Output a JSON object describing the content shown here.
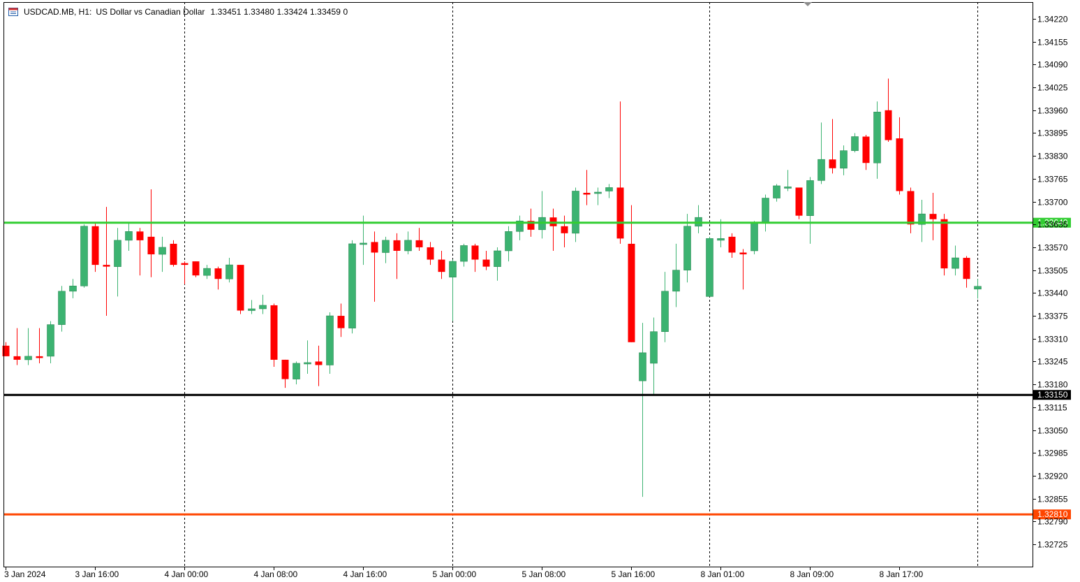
{
  "header": {
    "symbol": "USDCAD.MB, H1:",
    "description": "US Dollar vs Canadian Dollar",
    "ohlc": "1.33451 1.33480 1.33424 1.33459  0"
  },
  "colors": {
    "bull": "#3cb371",
    "bear": "#ff0000",
    "grid": "#000000",
    "axis": "#000000",
    "hline_green": "#32cd32",
    "hline_black": "#000000",
    "hline_orange": "#ff4500",
    "background": "#ffffff"
  },
  "chart_data": {
    "type": "candlestick",
    "y_ticks": [
      "1.34220",
      "1.34155",
      "1.34090",
      "1.34025",
      "1.33960",
      "1.33895",
      "1.33830",
      "1.33765",
      "1.33700",
      "1.33635",
      "1.33570",
      "1.33505",
      "1.33440",
      "1.33375",
      "1.33310",
      "1.33245",
      "1.33180",
      "1.33115",
      "1.33050",
      "1.32985",
      "1.32920",
      "1.32855",
      "1.32790",
      "1.32725"
    ],
    "y_tick_values": [
      1.3422,
      1.34155,
      1.3409,
      1.34025,
      1.3396,
      1.33895,
      1.3383,
      1.33765,
      1.337,
      1.33635,
      1.3357,
      1.33505,
      1.3344,
      1.33375,
      1.3331,
      1.33245,
      1.3318,
      1.33115,
      1.3305,
      1.32985,
      1.3292,
      1.32855,
      1.3279,
      1.32725
    ],
    "x_labels": [
      {
        "label": "3 Jan 2024",
        "index": 0
      },
      {
        "label": "3 Jan 16:00",
        "index": 8
      },
      {
        "label": "4 Jan 00:00",
        "index": 16
      },
      {
        "label": "4 Jan 08:00",
        "index": 24
      },
      {
        "label": "4 Jan 16:00",
        "index": 32
      },
      {
        "label": "5 Jan 00:00",
        "index": 40
      },
      {
        "label": "5 Jan 08:00",
        "index": 48
      },
      {
        "label": "5 Jan 16:00",
        "index": 56
      },
      {
        "label": "8 Jan 01:00",
        "index": 64
      },
      {
        "label": "8 Jan 09:00",
        "index": 72
      },
      {
        "label": "8 Jan 17:00",
        "index": 80
      }
    ],
    "separators": [
      16,
      40,
      63,
      87
    ],
    "hlines": [
      {
        "value": 1.3364,
        "label": "1.33640",
        "color": "#32cd32"
      },
      {
        "value": 1.3315,
        "label": "1.33150",
        "color": "#000000"
      },
      {
        "value": 1.3281,
        "label": "1.32810",
        "color": "#ff4500"
      }
    ],
    "candles": [
      [
        1.3329,
        1.333,
        1.3326,
        1.3326
      ],
      [
        1.3326,
        1.3334,
        1.33235,
        1.3325
      ],
      [
        1.3325,
        1.3334,
        1.33235,
        1.3326
      ],
      [
        1.3326,
        1.3334,
        1.3324,
        1.33255
      ],
      [
        1.3326,
        1.3336,
        1.3324,
        1.3335
      ],
      [
        1.3335,
        1.3346,
        1.3333,
        1.33445
      ],
      [
        1.33445,
        1.3348,
        1.33425,
        1.3346
      ],
      [
        1.3346,
        1.33635,
        1.33455,
        1.3363
      ],
      [
        1.3363,
        1.3364,
        1.335,
        1.3352
      ],
      [
        1.3352,
        1.33685,
        1.33375,
        1.33515
      ],
      [
        1.33515,
        1.33625,
        1.3343,
        1.3359
      ],
      [
        1.3359,
        1.3364,
        1.3356,
        1.33615
      ],
      [
        1.33615,
        1.33625,
        1.3349,
        1.3359
      ],
      [
        1.336,
        1.33735,
        1.33485,
        1.3355
      ],
      [
        1.3355,
        1.336,
        1.335,
        1.3357
      ],
      [
        1.3358,
        1.3359,
        1.33515,
        1.3352
      ],
      [
        1.33525,
        1.3353,
        1.33465,
        1.3352
      ],
      [
        1.3353,
        1.3353,
        1.33485,
        1.3349
      ],
      [
        1.3349,
        1.3352,
        1.3348,
        1.3351
      ],
      [
        1.3351,
        1.33515,
        1.3345,
        1.3348
      ],
      [
        1.3348,
        1.3354,
        1.3347,
        1.3352
      ],
      [
        1.3352,
        1.3352,
        1.3338,
        1.3339
      ],
      [
        1.3339,
        1.3342,
        1.3338,
        1.33395
      ],
      [
        1.33395,
        1.33435,
        1.3338,
        1.33405
      ],
      [
        1.33405,
        1.3341,
        1.3323,
        1.3325
      ],
      [
        1.3325,
        1.3325,
        1.3317,
        1.33195
      ],
      [
        1.33195,
        1.33245,
        1.3318,
        1.3324
      ],
      [
        1.3324,
        1.33305,
        1.3321,
        1.3324
      ],
      [
        1.33245,
        1.3329,
        1.33175,
        1.33235
      ],
      [
        1.33235,
        1.33385,
        1.3321,
        1.33375
      ],
      [
        1.33375,
        1.3341,
        1.33315,
        1.3334
      ],
      [
        1.3334,
        1.3359,
        1.33325,
        1.3358
      ],
      [
        1.3358,
        1.3366,
        1.3352,
        1.3358
      ],
      [
        1.33585,
        1.33615,
        1.33415,
        1.33555
      ],
      [
        1.33555,
        1.336,
        1.33525,
        1.3359
      ],
      [
        1.3359,
        1.3361,
        1.3348,
        1.3356
      ],
      [
        1.3356,
        1.33615,
        1.3355,
        1.3359
      ],
      [
        1.3359,
        1.33625,
        1.3356,
        1.3357
      ],
      [
        1.3357,
        1.33585,
        1.3352,
        1.33535
      ],
      [
        1.33535,
        1.3356,
        1.3348,
        1.335
      ],
      [
        1.33485,
        1.33535,
        1.3336,
        1.3353
      ],
      [
        1.3353,
        1.3358,
        1.33515,
        1.33575
      ],
      [
        1.33575,
        1.3358,
        1.335,
        1.33535
      ],
      [
        1.33535,
        1.3356,
        1.33505,
        1.33515
      ],
      [
        1.33515,
        1.3357,
        1.33475,
        1.3356
      ],
      [
        1.3356,
        1.3363,
        1.3353,
        1.33615
      ],
      [
        1.33615,
        1.3366,
        1.3359,
        1.33645
      ],
      [
        1.33645,
        1.3368,
        1.336,
        1.3362
      ],
      [
        1.3362,
        1.3373,
        1.33595,
        1.33655
      ],
      [
        1.33655,
        1.3368,
        1.3356,
        1.3363
      ],
      [
        1.3363,
        1.3366,
        1.3357,
        1.3361
      ],
      [
        1.3361,
        1.3374,
        1.33585,
        1.3373
      ],
      [
        1.33725,
        1.3379,
        1.3369,
        1.3372
      ],
      [
        1.33725,
        1.3374,
        1.3369,
        1.33725
      ],
      [
        1.3373,
        1.3375,
        1.3371,
        1.3374
      ],
      [
        1.3374,
        1.33985,
        1.3358,
        1.33595
      ],
      [
        1.3358,
        1.3369,
        1.333,
        1.333
      ],
      [
        1.3319,
        1.33355,
        1.3286,
        1.3327
      ],
      [
        1.3324,
        1.3337,
        1.3315,
        1.3333
      ],
      [
        1.3333,
        1.335,
        1.333,
        1.33445
      ],
      [
        1.33445,
        1.3358,
        1.334,
        1.33505
      ],
      [
        1.33505,
        1.33665,
        1.3347,
        1.3363
      ],
      [
        1.3363,
        1.3369,
        1.3361,
        1.33655
      ],
      [
        1.3343,
        1.336,
        1.3343,
        1.33595
      ],
      [
        1.3359,
        1.3365,
        1.3357,
        1.33595
      ],
      [
        1.336,
        1.3361,
        1.3354,
        1.33555
      ],
      [
        1.33555,
        1.33565,
        1.3345,
        1.3355
      ],
      [
        1.3356,
        1.33645,
        1.3355,
        1.3364
      ],
      [
        1.3364,
        1.3372,
        1.33615,
        1.3371
      ],
      [
        1.3371,
        1.3375,
        1.337,
        1.33745
      ],
      [
        1.3374,
        1.3379,
        1.3373,
        1.3374
      ],
      [
        1.3374,
        1.3374,
        1.3365,
        1.3366
      ],
      [
        1.3366,
        1.3377,
        1.3358,
        1.3376
      ],
      [
        1.3376,
        1.33925,
        1.3375,
        1.3382
      ],
      [
        1.3382,
        1.33935,
        1.3378,
        1.33795
      ],
      [
        1.33795,
        1.3386,
        1.33775,
        1.33845
      ],
      [
        1.33845,
        1.33895,
        1.3384,
        1.33885
      ],
      [
        1.33885,
        1.3389,
        1.3379,
        1.3381
      ],
      [
        1.3381,
        1.33985,
        1.33765,
        1.33955
      ],
      [
        1.3396,
        1.3405,
        1.3387,
        1.33875
      ],
      [
        1.3388,
        1.3394,
        1.3372,
        1.3373
      ],
      [
        1.3373,
        1.3374,
        1.3361,
        1.33635
      ],
      [
        1.33635,
        1.33705,
        1.33585,
        1.33665
      ],
      [
        1.33665,
        1.33725,
        1.3359,
        1.3365
      ],
      [
        1.3365,
        1.33665,
        1.3349,
        1.3351
      ],
      [
        1.3351,
        1.33575,
        1.3349,
        1.3354
      ],
      [
        1.3354,
        1.33545,
        1.33455,
        1.3348
      ],
      [
        1.33451,
        1.3348,
        1.33424,
        1.33459
      ]
    ]
  }
}
